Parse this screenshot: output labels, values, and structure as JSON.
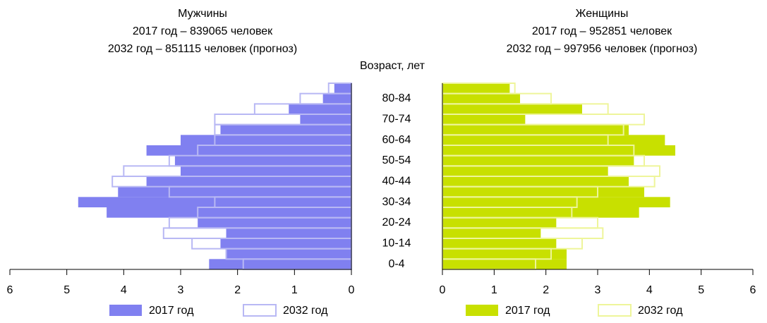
{
  "chart_data": {
    "type": "pyramid",
    "y_label": "Возраст, лет",
    "categories": [
      "0-4",
      null,
      "10-14",
      null,
      "20-24",
      null,
      "30-34",
      null,
      "40-44",
      null,
      "50-54",
      null,
      "60-64",
      null,
      "70-74",
      null,
      "80-84",
      null
    ],
    "panels": [
      {
        "title": "Мужчины",
        "subtitle": [
          "2017 год – 839065 человек",
          "2032 год – 851115 человек (прогноз)"
        ],
        "xlim": [
          0,
          6
        ],
        "xticks": [
          0,
          1,
          2,
          3,
          4,
          5,
          6
        ],
        "x_reversed": true,
        "series": [
          {
            "name": "2017 год",
            "color": "#8080f0",
            "style": "filled",
            "values": [
              2.5,
              2.2,
              2.3,
              2.2,
              2.7,
              4.3,
              4.8,
              4.1,
              3.6,
              3.0,
              3.1,
              3.6,
              3.0,
              2.3,
              0.9,
              1.1,
              0.5,
              0.3
            ]
          },
          {
            "name": "2032 год",
            "color": "#b8b8f4",
            "style": "outline",
            "values": [
              1.9,
              2.2,
              2.8,
              3.3,
              3.2,
              2.7,
              2.4,
              3.2,
              4.2,
              4.0,
              3.2,
              2.7,
              2.4,
              2.4,
              2.4,
              1.7,
              0.9,
              0.4
            ]
          }
        ]
      },
      {
        "title": "Женщины",
        "subtitle": [
          "2017 год – 952851 человек",
          "2032 год – 997956 человек (прогноз)"
        ],
        "xlim": [
          0,
          6
        ],
        "xticks": [
          0,
          1,
          2,
          3,
          4,
          5,
          6
        ],
        "x_reversed": false,
        "series": [
          {
            "name": "2017 год",
            "color": "#c8e000",
            "style": "filled",
            "values": [
              2.4,
              2.4,
              2.2,
              1.9,
              2.2,
              3.8,
              4.4,
              3.9,
              3.6,
              3.2,
              3.7,
              4.5,
              4.3,
              3.6,
              1.6,
              2.7,
              1.5,
              1.3
            ]
          },
          {
            "name": "2032 год",
            "color": "#eef59a",
            "style": "outline",
            "values": [
              1.8,
              2.1,
              2.7,
              3.1,
              3.0,
              2.5,
              2.6,
              3.0,
              4.1,
              4.2,
              3.9,
              3.7,
              3.2,
              3.5,
              3.9,
              3.2,
              2.1,
              1.4
            ]
          }
        ]
      }
    ]
  }
}
